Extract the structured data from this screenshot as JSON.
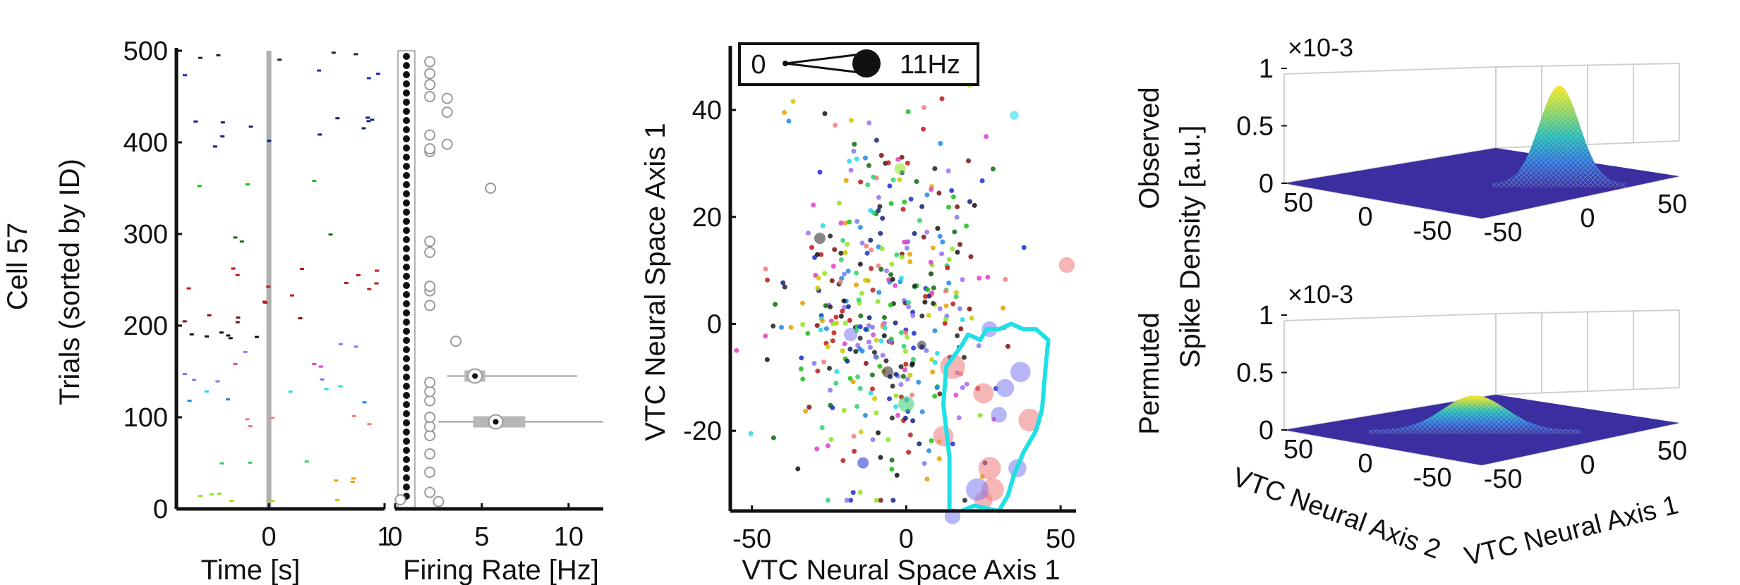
{
  "figure": {
    "cell_label": "Cell 57"
  },
  "chart_data": [
    {
      "id": "raster",
      "type": "scatter",
      "subtype": "spike-raster",
      "xlabel": "Time [s]",
      "ylabel": "Trials (sorted by ID)",
      "xlim": [
        -0.8,
        1.0
      ],
      "ylim": [
        0,
        500
      ],
      "x_ticks": [
        0,
        1
      ],
      "x_tick_labels": [
        "0",
        "1"
      ],
      "y_ticks": [
        0,
        100,
        200,
        300,
        400,
        500
      ],
      "y_tick_labels": [
        "0",
        "100",
        "200",
        "300",
        "400",
        "500"
      ],
      "stimulus_onset": 0,
      "groups": [
        {
          "color": "#c8c800",
          "trial_range": [
            8,
            10
          ]
        },
        {
          "color": "#e6a000",
          "trial_range": [
            25,
            34
          ]
        },
        {
          "color": "#8be51a",
          "trial_range": [
            14,
            20
          ]
        },
        {
          "color": "#2fd06b",
          "trial_range": [
            48,
            52
          ]
        },
        {
          "color": "#f07a7a",
          "trial_range": [
            88,
            104
          ]
        },
        {
          "color": "#1e88e5",
          "trial_range": [
            115,
            122
          ]
        },
        {
          "color": "#1fd9e6",
          "trial_range": [
            122,
            134
          ]
        },
        {
          "color": "#7b7bf0",
          "trial_range": [
            138,
            150
          ]
        },
        {
          "color": "#e040c8",
          "trial_range": [
            155,
            162
          ]
        },
        {
          "color": "#a06ef0",
          "trial_range": [
            170,
            180
          ]
        },
        {
          "color": "#111111",
          "trial_range": [
            182,
            200
          ]
        },
        {
          "color": "#7a1010",
          "trial_range": [
            200,
            215
          ]
        },
        {
          "color": "#c01a1a",
          "trial_range": [
            225,
            265
          ]
        },
        {
          "color": "#0d6b0d",
          "trial_range": [
            290,
            300
          ]
        },
        {
          "color": "#18c018",
          "trial_range": [
            350,
            360
          ]
        },
        {
          "color": "#0f2080",
          "trial_range": [
            395,
            432
          ]
        },
        {
          "color": "#1a2fd0",
          "trial_range": [
            468,
            480
          ]
        },
        {
          "color": "#222222",
          "trial_range": [
            485,
            500
          ]
        }
      ]
    },
    {
      "id": "firing-rate",
      "type": "scatter",
      "subtype": "firing-rate-per-trial-with-boxplots",
      "xlabel": "Firing Rate [Hz]",
      "xlim": [
        0,
        12
      ],
      "ylim": [
        0,
        500
      ],
      "x_ticks": [
        0,
        5,
        10
      ],
      "x_tick_labels": [
        "0",
        "5",
        "10"
      ],
      "points": [
        {
          "x": 0.3,
          "y": 10
        },
        {
          "x": 2.5,
          "y": 8
        },
        {
          "x": 2.0,
          "y": 18
        },
        {
          "x": 2.0,
          "y": 40
        },
        {
          "x": 2.0,
          "y": 60
        },
        {
          "x": 2.0,
          "y": 80
        },
        {
          "x": 2.0,
          "y": 90
        },
        {
          "x": 2.0,
          "y": 100
        },
        {
          "x": 2.0,
          "y": 118
        },
        {
          "x": 2.0,
          "y": 128
        },
        {
          "x": 2.0,
          "y": 138
        },
        {
          "x": 3.5,
          "y": 183
        },
        {
          "x": 2.0,
          "y": 222
        },
        {
          "x": 2.0,
          "y": 238
        },
        {
          "x": 2.0,
          "y": 243
        },
        {
          "x": 2.0,
          "y": 280
        },
        {
          "x": 2.0,
          "y": 292
        },
        {
          "x": 5.5,
          "y": 350
        },
        {
          "x": 2.0,
          "y": 390
        },
        {
          "x": 2.0,
          "y": 393
        },
        {
          "x": 2.0,
          "y": 408
        },
        {
          "x": 3.0,
          "y": 398
        },
        {
          "x": 3.0,
          "y": 433
        },
        {
          "x": 3.0,
          "y": 448
        },
        {
          "x": 2.0,
          "y": 450
        },
        {
          "x": 2.0,
          "y": 463
        },
        {
          "x": 2.0,
          "y": 475
        },
        {
          "x": 2.0,
          "y": 488
        }
      ],
      "boxplots": [
        {
          "y": 145,
          "whisker": [
            3.0,
            10.5
          ],
          "q1": 4.0,
          "q3": 5.2,
          "median": 4.6
        },
        {
          "y": 95,
          "whisker": [
            2.5,
            12.0
          ],
          "q1": 4.5,
          "q3": 7.5,
          "median": 5.8
        }
      ]
    },
    {
      "id": "neural-space",
      "type": "scatter",
      "xlabel": "VTC Neural Space Axis 1",
      "ylabel": "VTC Neural Space Axis 1",
      "xlim": [
        -57,
        55
      ],
      "ylim": [
        -35,
        52
      ],
      "x_ticks": [
        -50,
        0,
        50
      ],
      "x_tick_labels": [
        "-50",
        "0",
        "50"
      ],
      "y_ticks": [
        -20,
        0,
        20,
        40
      ],
      "y_tick_labels": [
        "-20",
        "0",
        "20",
        "40"
      ],
      "legend": {
        "min_label": "0",
        "max_label": "11Hz"
      },
      "large_points": [
        {
          "x": 15,
          "y": -8,
          "r": 11,
          "color": "#f07a7a"
        },
        {
          "x": 25,
          "y": -13,
          "r": 9,
          "color": "#f07a7a"
        },
        {
          "x": 40,
          "y": -18,
          "r": 10,
          "color": "#f07a7a"
        },
        {
          "x": 12,
          "y": -21,
          "r": 9,
          "color": "#f07a7a"
        },
        {
          "x": 27,
          "y": -27,
          "r": 10,
          "color": "#f07a7a"
        },
        {
          "x": 28,
          "y": -31,
          "r": 10,
          "color": "#f07a7a"
        },
        {
          "x": 25,
          "y": -33,
          "r": 8,
          "color": "#f07a7a"
        },
        {
          "x": 52,
          "y": 11,
          "r": 7,
          "color": "#f07a7a"
        },
        {
          "x": 27,
          "y": -1,
          "r": 7,
          "color": "#7b7bf0"
        },
        {
          "x": 37,
          "y": -9,
          "r": 9,
          "color": "#7b7bf0"
        },
        {
          "x": 32,
          "y": -12,
          "r": 8,
          "color": "#7b7bf0"
        },
        {
          "x": 30,
          "y": -17,
          "r": 7,
          "color": "#7b7bf0"
        },
        {
          "x": 36,
          "y": -27,
          "r": 8,
          "color": "#7b7bf0"
        },
        {
          "x": 23,
          "y": -31,
          "r": 10,
          "color": "#7b7bf0"
        },
        {
          "x": 15,
          "y": -36,
          "r": 7,
          "color": "#7b7bf0"
        },
        {
          "x": -18,
          "y": -2,
          "r": 6,
          "color": "#7b7bf0"
        },
        {
          "x": 0,
          "y": -15,
          "r": 7,
          "color": "#2fd06b"
        },
        {
          "x": 35,
          "y": 39,
          "r": 4,
          "color": "#1fd9e6"
        },
        {
          "x": -14,
          "y": -26,
          "r": 5,
          "color": "#1a2fd0"
        },
        {
          "x": -2,
          "y": 29,
          "r": 5,
          "color": "#8be51a"
        },
        {
          "x": -28,
          "y": 16,
          "r": 5,
          "color": "#222222"
        },
        {
          "x": -6,
          "y": -9,
          "r": 5,
          "color": "#222222"
        },
        {
          "x": 5,
          "y": -4,
          "r": 4,
          "color": "#222222"
        }
      ],
      "highlight_region": [
        [
          14,
          -35
        ],
        [
          14,
          -25
        ],
        [
          12,
          -15
        ],
        [
          13,
          -8
        ],
        [
          18,
          -4
        ],
        [
          20,
          -2
        ],
        [
          24,
          -3
        ],
        [
          26,
          -1
        ],
        [
          30,
          -1
        ],
        [
          34,
          0
        ],
        [
          38,
          -1
        ],
        [
          42,
          -1
        ],
        [
          46,
          -3
        ],
        [
          45,
          -9
        ],
        [
          44,
          -16
        ],
        [
          42,
          -20
        ],
        [
          38,
          -24
        ],
        [
          35,
          -28
        ],
        [
          33,
          -32
        ],
        [
          30,
          -35
        ],
        [
          22,
          -34
        ],
        [
          18,
          -35
        ]
      ],
      "highlight_color": "#1fe0e6"
    },
    {
      "id": "observed-density",
      "type": "heatmap",
      "subtype": "3d-surface",
      "zlabel": "Spike Density [a.u.]",
      "row_label": "Observed",
      "z_multiplier": "×10-3",
      "z_ticks": [
        0,
        0.5,
        1
      ],
      "z_tick_labels": [
        "0",
        "0.5",
        "1"
      ],
      "y_tick_labels": [
        "50",
        "0",
        "-50"
      ],
      "x_tick_labels": [
        "-50",
        "0",
        "50"
      ],
      "peak_value": 0.85,
      "peak_location": [
        20,
        -15
      ]
    },
    {
      "id": "permuted-density",
      "type": "heatmap",
      "subtype": "3d-surface",
      "row_label": "Permuted",
      "z_multiplier": "×10-3",
      "z_ticks": [
        0,
        0.5,
        1
      ],
      "z_tick_labels": [
        "0",
        "0.5",
        "1"
      ],
      "y_tick_labels": [
        "50",
        "0",
        "-50"
      ],
      "x_tick_labels": [
        "-50",
        "0",
        "50"
      ],
      "xlabel": "VTC Neural Axis 1",
      "ylabel": "VTC Neural Axis 2",
      "peak_value": 0.3,
      "peak_location": [
        -5,
        0
      ]
    }
  ]
}
